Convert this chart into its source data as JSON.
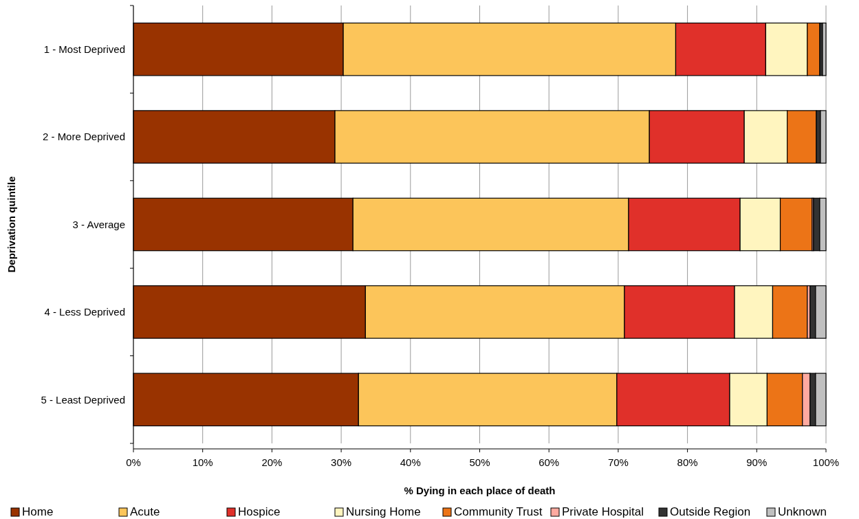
{
  "chart_data": {
    "type": "bar",
    "orientation": "horizontal",
    "stacked": true,
    "xlabel": "% Dying in each place of death",
    "ylabel": "Deprivation quintile",
    "categories": [
      "1 - Most Deprived",
      "2 - More Deprived",
      "3 - Average",
      "4 - Less Deprived",
      "5 - Least Deprived"
    ],
    "series": [
      {
        "name": "Home",
        "color": "#993300",
        "values": [
          30.3,
          29.1,
          31.7,
          33.5,
          32.5
        ]
      },
      {
        "name": "Acute",
        "color": "#fcc55a",
        "values": [
          48.0,
          45.4,
          39.8,
          37.4,
          37.3
        ]
      },
      {
        "name": "Hospice",
        "color": "#e0302a",
        "values": [
          13.0,
          13.7,
          16.1,
          15.9,
          16.3
        ]
      },
      {
        "name": "Nursing Home",
        "color": "#fff5bf",
        "values": [
          6.0,
          6.2,
          5.8,
          5.5,
          5.4
        ]
      },
      {
        "name": "Community Trust",
        "color": "#ec7417",
        "values": [
          1.8,
          4.2,
          4.6,
          5.0,
          5.1
        ]
      },
      {
        "name": "Private Hospital",
        "color": "#ffaaa0",
        "values": [
          0.0,
          null,
          0.2,
          0.4,
          1.1
        ]
      },
      {
        "name": "Outside Region",
        "color": "#333333",
        "values": [
          0.4,
          0.6,
          0.9,
          0.8,
          0.8
        ]
      },
      {
        "name": "Unknown",
        "color": "#c0c0c0",
        "values": [
          0.5,
          0.8,
          0.9,
          1.5,
          1.5
        ]
      }
    ],
    "xlim": [
      0,
      100
    ],
    "xticks": [
      {
        "value": 0,
        "label": "0%"
      },
      {
        "value": 10,
        "label": "10%"
      },
      {
        "value": 20,
        "label": "20%"
      },
      {
        "value": 30,
        "label": "30%"
      },
      {
        "value": 40,
        "label": "40%"
      },
      {
        "value": 50,
        "label": "50%"
      },
      {
        "value": 60,
        "label": "60%"
      },
      {
        "value": 70,
        "label": "70%"
      },
      {
        "value": 80,
        "label": "80%"
      },
      {
        "value": 90,
        "label": "90%"
      },
      {
        "value": 100,
        "label": "100%"
      }
    ],
    "grid": "x",
    "legend": "bottom"
  }
}
